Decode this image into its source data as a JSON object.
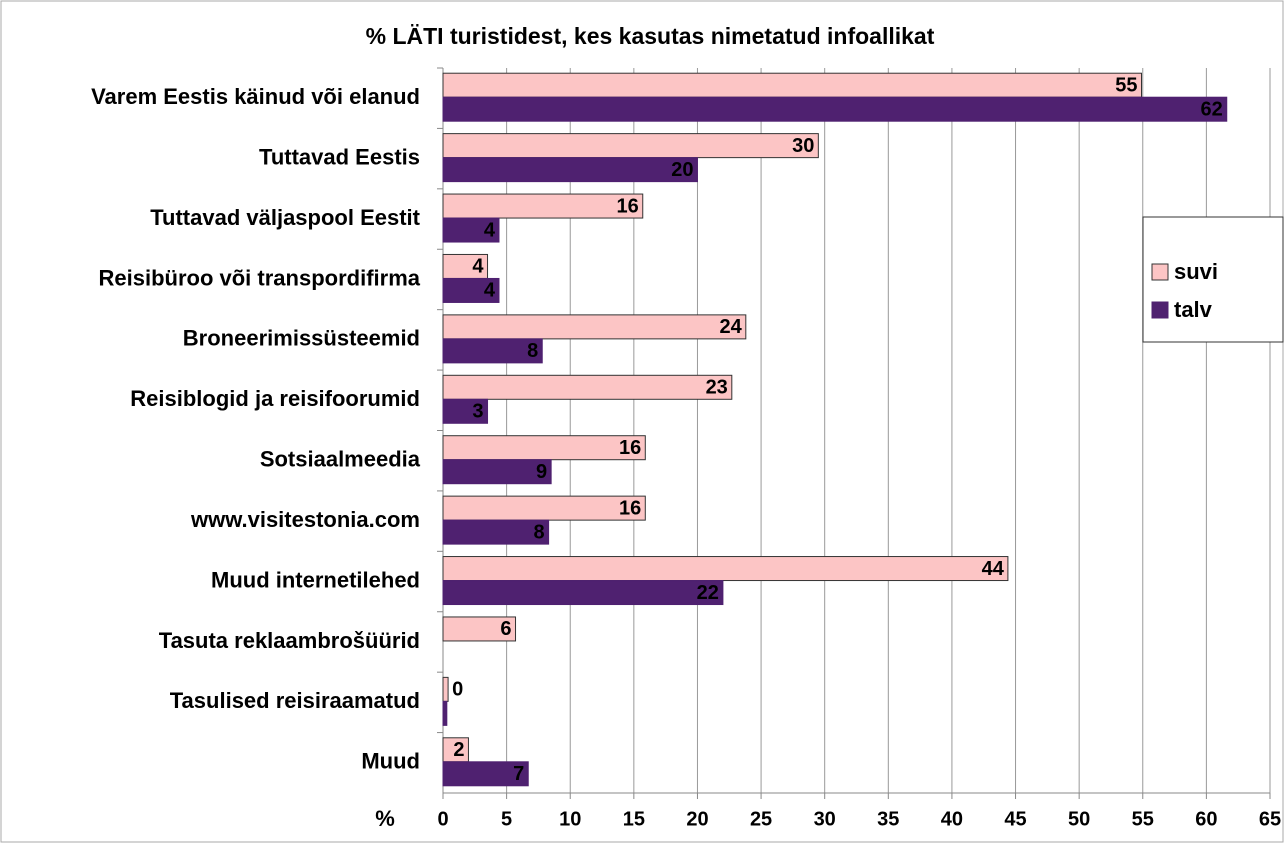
{
  "chart_data": {
    "type": "hbar",
    "title": "% LÄTI turistidest, kes kasutas nimetatud infoallikat",
    "xlabel": "%",
    "categories": [
      "Varem Eestis käinud või elanud",
      "Tuttavad Eestis",
      "Tuttavad väljaspool Eestit",
      "Reisibüroo või transpordifirma",
      "Broneerimissüsteemid",
      "Reisiblogid ja reisifoorumid",
      "Sotsiaalmeedia",
      "www.visitestonia.com",
      "Muud internetilehed",
      "Tasuta reklaambrošüürid",
      "Tasulised reisiraamatud",
      "Muud"
    ],
    "series": [
      {
        "name": "suvi",
        "color": "#fcc5c5",
        "values": [
          54.9,
          29.5,
          15.7,
          3.5,
          23.8,
          22.7,
          15.9,
          15.9,
          44.4,
          5.7,
          0.4,
          2.0
        ],
        "value_labels": [
          "55",
          "30",
          "16",
          "4",
          "24",
          "23",
          "16",
          "16",
          "44",
          "6",
          "0",
          "2"
        ]
      },
      {
        "name": "talv",
        "color": "#4f2170",
        "values": [
          61.6,
          20.0,
          4.4,
          4.4,
          7.8,
          3.5,
          8.5,
          8.3,
          22.0,
          null,
          0.3,
          6.7
        ],
        "value_labels": [
          "62",
          "20",
          "4",
          "4",
          "8",
          "3",
          "9",
          "8",
          "22",
          null,
          null,
          "7"
        ]
      }
    ],
    "xlim": [
      0,
      65
    ],
    "xticks": [
      0,
      5,
      10,
      15,
      20,
      25,
      30,
      35,
      40,
      45,
      50,
      55,
      60,
      65
    ],
    "grid": true,
    "legend": "right"
  }
}
